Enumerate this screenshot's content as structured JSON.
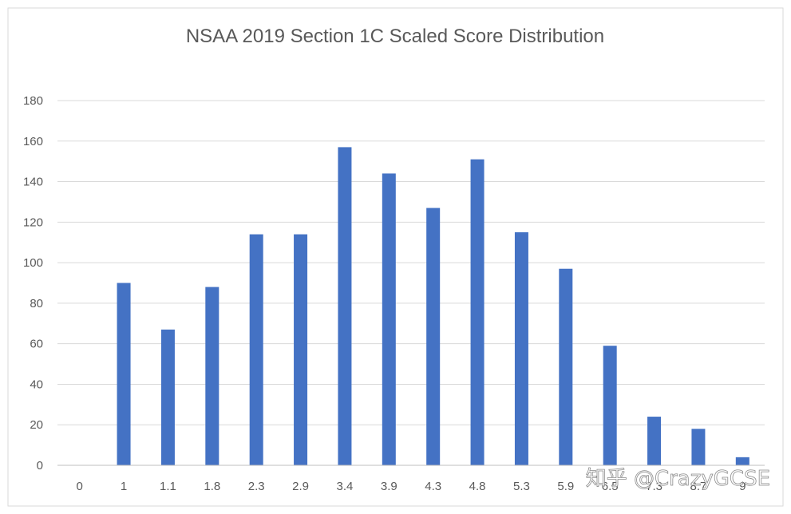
{
  "chart_data": {
    "type": "bar",
    "title": "NSAA 2019 Section 1C Scaled Score Distribution",
    "xlabel": "",
    "ylabel": "",
    "categories": [
      "0",
      "1",
      "1.1",
      "1.8",
      "2.3",
      "2.9",
      "3.4",
      "3.9",
      "4.3",
      "4.8",
      "5.3",
      "5.9",
      "6.5",
      "7.3",
      "8.7",
      "9"
    ],
    "values": [
      0,
      90,
      67,
      88,
      114,
      114,
      157,
      144,
      127,
      151,
      115,
      97,
      59,
      24,
      18,
      4
    ],
    "ylim": [
      0,
      180
    ],
    "yticks": [
      0,
      20,
      40,
      60,
      80,
      100,
      120,
      140,
      160,
      180
    ],
    "grid": true,
    "legend": "none",
    "bar_color": "#4472c4"
  },
  "watermark": "知乎 @CrazyGCSE"
}
